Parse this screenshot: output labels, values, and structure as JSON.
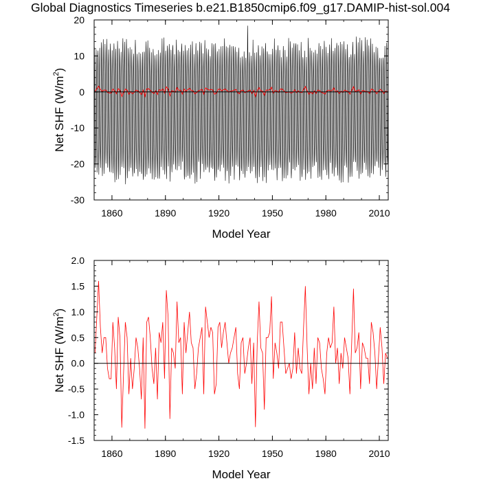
{
  "figure": {
    "title": "Global Diagnostics Timeseries b.e21.B1850cmip6.f09_g17.DAMIP-hist-sol.004"
  },
  "colors": {
    "monthly_series": "#000000",
    "annual_series": "#ff0000",
    "zero_line": "#000000"
  },
  "chart_data": [
    {
      "type": "line",
      "xlabel": "Model Year",
      "ylabel_main": "Net SHF (W/m",
      "ylabel_sup": "2",
      "ylabel_close": ")",
      "xlim": [
        1850,
        2015
      ],
      "ylim": [
        -30,
        20
      ],
      "x_ticks": [
        1860,
        1890,
        1920,
        1950,
        1980,
        2010
      ],
      "y_ticks": [
        -30,
        -20,
        -10,
        0,
        10,
        20
      ],
      "y_tick_labels": [
        "-30",
        "-20",
        "-10",
        "0",
        "10",
        "20"
      ],
      "zero_line": true,
      "grid": false,
      "series": [
        {
          "kind": "monthly seasonal cycle",
          "color": "#000000",
          "x_start": 1850,
          "x_end": 2014,
          "seasonal_min_range": [
            -25,
            -20
          ],
          "seasonal_max_range": [
            10,
            17.5
          ],
          "peak": {
            "x": 1936,
            "y": 17.5
          }
        },
        {
          "kind": "annual mean",
          "color": "#ff0000",
          "values_ref": "annual_mean"
        }
      ]
    },
    {
      "type": "line",
      "xlabel": "Model Year",
      "ylabel_main": "Net SHF (W/m",
      "ylabel_sup": "2",
      "ylabel_close": ")",
      "xlim": [
        1850,
        2015
      ],
      "ylim": [
        -1.5,
        2.0
      ],
      "x_ticks": [
        1860,
        1890,
        1920,
        1950,
        1980,
        2010
      ],
      "y_ticks": [
        -1.5,
        -1.0,
        -0.5,
        0.0,
        0.5,
        1.0,
        1.5,
        2.0
      ],
      "y_tick_labels": [
        "-1.5",
        "-1.0",
        "-0.5",
        "0.0",
        "0.5",
        "1.0",
        "1.5",
        "2.0"
      ],
      "zero_line": true,
      "grid": false,
      "series": [
        {
          "kind": "annual mean",
          "color": "#ff0000",
          "values_ref": "annual_mean"
        }
      ]
    }
  ],
  "annual_mean": {
    "x_start": 1850,
    "values": [
      0.2,
      0.9,
      1.6,
      0.7,
      0.2,
      0.5,
      0.5,
      -0.1,
      -0.3,
      -0.3,
      0.8,
      0.3,
      -0.5,
      0.9,
      0.5,
      -1.25,
      -0.2,
      0.8,
      0.5,
      -0.6,
      0.1,
      -0.5,
      -0.1,
      0.5,
      0.3,
      -0.1,
      -0.7,
      0.5,
      -1.27,
      0.8,
      0.9,
      0.5,
      -0.1,
      -0.4,
      0.3,
      -0.7,
      0.6,
      0.4,
      0.8,
      -0.3,
      1.42,
      0.9,
      -1.08,
      0.3,
      0.2,
      -0.1,
      1.2,
      0.4,
      0.5,
      -0.6,
      0.8,
      0.2,
      0.6,
      1.0,
      0.4,
      0.3,
      -0.5,
      -0.2,
      0.3,
      0.5,
      0.7,
      -0.6,
      1.1,
      0.8,
      0.5,
      0.7,
      0.6,
      -0.6,
      -0.4,
      0.7,
      0.8,
      0.3,
      0.6,
      0.8,
      0.4,
      0.0,
      0.2,
      0.3,
      0.5,
      0.7,
      -0.2,
      -0.5,
      0.4,
      0.5,
      -0.2,
      0.0,
      0.3,
      0.5,
      -0.4,
      0.4,
      -1.24,
      0.4,
      1.2,
      0.3,
      0.2,
      -0.9,
      0.5,
      0.5,
      0.6,
      1.3,
      -0.3,
      0.4,
      0.2,
      -0.1,
      0.8,
      0.8,
      0.3,
      -0.2,
      -0.1,
      0.0,
      -0.3,
      -0.1,
      0.6,
      -0.2,
      0.3,
      -0.1,
      -0.2,
      0.7,
      1.5,
      0.3,
      -0.6,
      0.0,
      -0.5,
      0.3,
      -0.4,
      0.5,
      0.4,
      -0.1,
      -0.3,
      -0.6,
      0.2,
      0.5,
      0.3,
      0.4,
      1.1,
      0.0,
      0.3,
      -0.4,
      0.2,
      -0.1,
      0.5,
      0.3,
      0.1,
      -0.6,
      0.4,
      1.45,
      0.2,
      0.3,
      0.6,
      -0.5,
      0.4,
      0.3,
      0.1,
      0.1,
      -0.4,
      0.8,
      0.6,
      0.2,
      -0.5,
      0.1,
      0.7,
      0.3,
      -0.4,
      0.2,
      0.1
    ]
  }
}
